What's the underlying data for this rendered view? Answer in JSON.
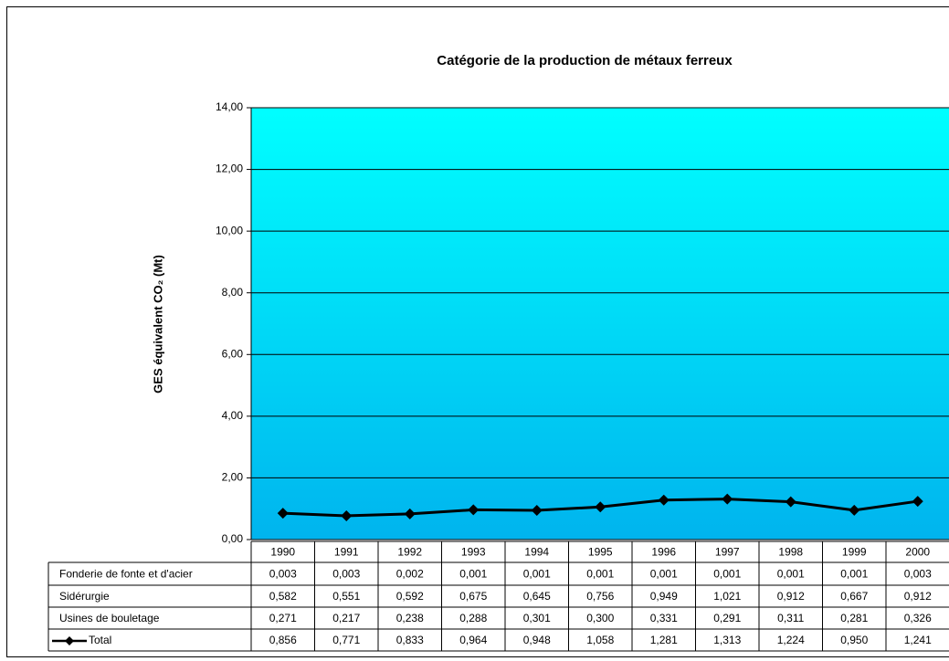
{
  "chart_data": {
    "type": "line",
    "title": "Catégorie de la production de métaux ferreux",
    "ylabel": "GES équivalent CO₂ (Mt)",
    "categories": [
      "1990",
      "1991",
      "1992",
      "1993",
      "1994",
      "1995",
      "1996",
      "1997",
      "1998",
      "1999",
      "2000"
    ],
    "ylim": [
      0,
      14
    ],
    "yticks": [
      {
        "value": 0,
        "label": "0,00"
      },
      {
        "value": 2,
        "label": "2,00"
      },
      {
        "value": 4,
        "label": "4,00"
      },
      {
        "value": 6,
        "label": "6,00"
      },
      {
        "value": 8,
        "label": "8,00"
      },
      {
        "value": 10,
        "label": "10,00"
      },
      {
        "value": 12,
        "label": "12,00"
      },
      {
        "value": 14,
        "label": "14,00"
      }
    ],
    "grid": true,
    "series": [
      {
        "name": "Fonderie de fonte et d'acier",
        "plotted": false,
        "values": [
          0.003,
          0.003,
          0.002,
          0.001,
          0.001,
          0.001,
          0.001,
          0.001,
          0.001,
          0.001,
          0.003
        ],
        "value_labels": [
          "0,003",
          "0,003",
          "0,002",
          "0,001",
          "0,001",
          "0,001",
          "0,001",
          "0,001",
          "0,001",
          "0,001",
          "0,003"
        ]
      },
      {
        "name": "Sidérurgie",
        "plotted": false,
        "values": [
          0.582,
          0.551,
          0.592,
          0.675,
          0.645,
          0.756,
          0.949,
          1.021,
          0.912,
          0.667,
          0.912
        ],
        "value_labels": [
          "0,582",
          "0,551",
          "0,592",
          "0,675",
          "0,645",
          "0,756",
          "0,949",
          "1,021",
          "0,912",
          "0,667",
          "0,912"
        ]
      },
      {
        "name": "Usines de bouletage",
        "plotted": false,
        "values": [
          0.271,
          0.217,
          0.238,
          0.288,
          0.301,
          0.3,
          0.331,
          0.291,
          0.311,
          0.281,
          0.326
        ],
        "value_labels": [
          "0,271",
          "0,217",
          "0,238",
          "0,288",
          "0,301",
          "0,300",
          "0,331",
          "0,291",
          "0,311",
          "0,281",
          "0,326"
        ]
      },
      {
        "name": "Total",
        "plotted": true,
        "color": "#000000",
        "values": [
          0.856,
          0.771,
          0.833,
          0.964,
          0.948,
          1.058,
          1.281,
          1.313,
          1.224,
          0.95,
          1.241
        ],
        "value_labels": [
          "0,856",
          "0,771",
          "0,833",
          "0,964",
          "0,948",
          "1,058",
          "1,281",
          "1,313",
          "1,224",
          "0,950",
          "1,241"
        ]
      }
    ]
  }
}
